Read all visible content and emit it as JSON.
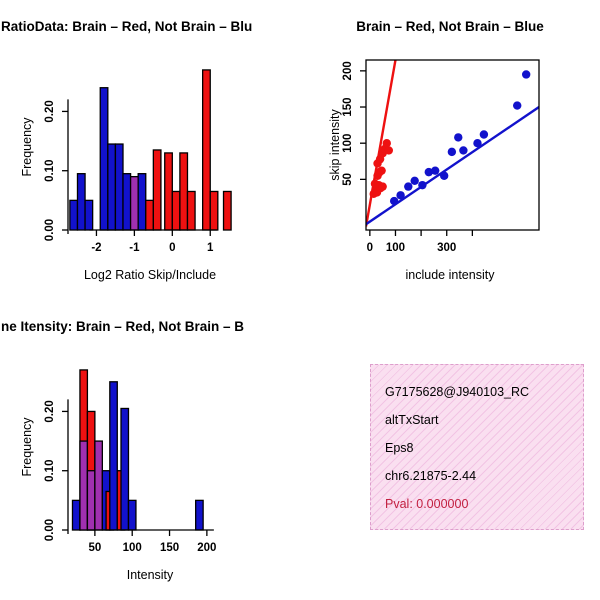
{
  "palette": {
    "blue": "#1212CC",
    "red": "#EE1111",
    "purple": "#A030B0",
    "axis": "#000000",
    "pval": "#C22040",
    "info_bg": "#FADFF0",
    "info_hatch": "#F2C4E4",
    "info_border": "#DD9ECC"
  },
  "chart_data": [
    {
      "type": "bar",
      "variant": "overlaid-histogram",
      "title": "RatioData: Brain – Red, Not Brain – Blu",
      "xlabel": "Log2 Ratio Skip/Include",
      "ylabel": "Frequency",
      "xlim": [
        -2.75,
        1.6
      ],
      "ylim": [
        0,
        0.28
      ],
      "xticks": [
        -2,
        -1,
        0,
        1
      ],
      "xtick_labels": [
        "-2",
        "-1",
        "0",
        "1"
      ],
      "yticks": [
        0,
        0.1,
        0.2
      ],
      "ytick_labels": [
        "0.00",
        "0.10",
        "0.20"
      ],
      "bin_width": 0.2,
      "legend": {
        "Brain": "red",
        "Not Brain": "blue"
      },
      "bars": [
        {
          "x": -2.7,
          "h": 0.05,
          "color": "blue"
        },
        {
          "x": -2.5,
          "h": 0.095,
          "color": "blue"
        },
        {
          "x": -2.3,
          "h": 0.05,
          "color": "blue"
        },
        {
          "x": -1.9,
          "h": 0.24,
          "color": "blue"
        },
        {
          "x": -1.7,
          "h": 0.145,
          "color": "blue"
        },
        {
          "x": -1.5,
          "h": 0.145,
          "color": "blue"
        },
        {
          "x": -1.3,
          "h": 0.095,
          "color": "blue"
        },
        {
          "x": -1.1,
          "h": 0.09,
          "color": "purple"
        },
        {
          "x": -0.9,
          "h": 0.095,
          "color": "blue"
        },
        {
          "x": -0.7,
          "h": 0.05,
          "color": "red"
        },
        {
          "x": -0.5,
          "h": 0.135,
          "color": "red"
        },
        {
          "x": -0.2,
          "h": 0.13,
          "color": "red"
        },
        {
          "x": 0.0,
          "h": 0.065,
          "color": "red"
        },
        {
          "x": 0.2,
          "h": 0.13,
          "color": "red"
        },
        {
          "x": 0.4,
          "h": 0.065,
          "color": "red"
        },
        {
          "x": 0.8,
          "h": 0.27,
          "color": "red"
        },
        {
          "x": 1.0,
          "h": 0.065,
          "color": "red"
        },
        {
          "x": 1.35,
          "h": 0.065,
          "color": "red"
        }
      ]
    },
    {
      "type": "scatter",
      "title": "Brain – Red, Not Brain – Blue",
      "xlabel": "include intensity",
      "ylabel": "skip intensity",
      "xlim": [
        -15,
        660
      ],
      "ylim": [
        -20,
        215
      ],
      "xticks": [
        0,
        100,
        200,
        300,
        400
      ],
      "xtick_labels": [
        "0",
        "100",
        "",
        "300",
        ""
      ],
      "yticks": [
        50,
        100,
        150,
        200
      ],
      "ytick_labels": [
        "50",
        "100",
        "150",
        "200"
      ],
      "box": true,
      "series": [
        {
          "name": "Brain",
          "color": "red",
          "points": [
            [
              15,
              30
            ],
            [
              22,
              36
            ],
            [
              28,
              32
            ],
            [
              35,
              42
            ],
            [
              42,
              38
            ],
            [
              50,
              40
            ],
            [
              30,
              55
            ],
            [
              38,
              60
            ],
            [
              46,
              62
            ],
            [
              30,
              72
            ],
            [
              40,
              78
            ],
            [
              50,
              86
            ],
            [
              58,
              92
            ],
            [
              66,
              100
            ],
            [
              74,
              90
            ],
            [
              20,
              44
            ]
          ]
        },
        {
          "name": "Not Brain",
          "color": "blue",
          "points": [
            [
              95,
              20
            ],
            [
              120,
              28
            ],
            [
              150,
              40
            ],
            [
              175,
              48
            ],
            [
              205,
              42
            ],
            [
              230,
              60
            ],
            [
              255,
              62
            ],
            [
              290,
              55
            ],
            [
              320,
              88
            ],
            [
              345,
              108
            ],
            [
              365,
              90
            ],
            [
              420,
              100
            ],
            [
              445,
              112
            ],
            [
              575,
              152
            ],
            [
              610,
              195
            ]
          ]
        }
      ],
      "lines": [
        {
          "name": "brain-fit",
          "color": "red",
          "from": [
            -15,
            -15
          ],
          "to": [
            100,
            215
          ]
        },
        {
          "name": "not-brain-fit",
          "color": "blue",
          "from": [
            -15,
            -12
          ],
          "to": [
            660,
            150
          ]
        }
      ]
    },
    {
      "type": "bar",
      "variant": "overlaid-histogram",
      "title": "ne Itensity: Brain – Red, Not Brain – B",
      "xlabel": "Intensity",
      "ylabel": "Frequency",
      "xlim": [
        14,
        235
      ],
      "ylim": [
        0,
        0.28
      ],
      "xticks": [
        50,
        100,
        150,
        200
      ],
      "xtick_labels": [
        "50",
        "100",
        "150",
        "200"
      ],
      "yticks": [
        0,
        0.1,
        0.2
      ],
      "ytick_labels": [
        "0.00",
        "0.10",
        "0.20"
      ],
      "bin_width": 10,
      "legend": {
        "Brain": "red",
        "Not Brain": "blue"
      },
      "bars": [
        {
          "x": 20,
          "h": 0.05,
          "color": "blue"
        },
        {
          "x": 30,
          "h": 0.27,
          "color": "red"
        },
        {
          "x": 30,
          "h": 0.15,
          "color": "purple"
        },
        {
          "x": 40,
          "h": 0.2,
          "color": "red"
        },
        {
          "x": 40,
          "h": 0.1,
          "color": "purple"
        },
        {
          "x": 50,
          "h": 0.15,
          "color": "purple"
        },
        {
          "x": 60,
          "h": 0.1,
          "color": "blue"
        },
        {
          "x": 65,
          "h": 0.065,
          "color": "red"
        },
        {
          "x": 70,
          "h": 0.25,
          "color": "blue"
        },
        {
          "x": 80,
          "h": 0.1,
          "color": "red"
        },
        {
          "x": 85,
          "h": 0.205,
          "color": "blue"
        },
        {
          "x": 95,
          "h": 0.05,
          "color": "blue"
        },
        {
          "x": 185,
          "h": 0.05,
          "color": "blue"
        }
      ]
    },
    {
      "type": "info-panel",
      "lines": [
        "G7175628@J940103_RC",
        "altTxStart",
        "Eps8",
        "chr6.21875-2.44"
      ],
      "pval": "Pval: 0.000000"
    }
  ]
}
